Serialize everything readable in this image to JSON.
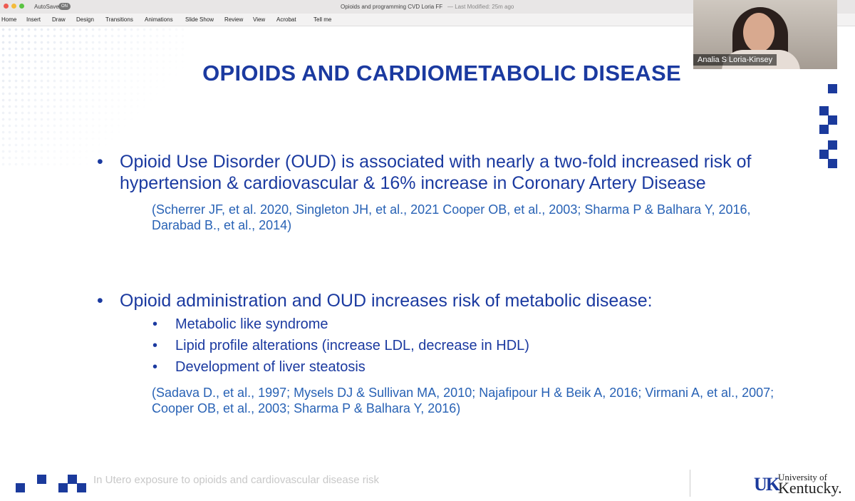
{
  "app_bar": {
    "autosave": "AutoSave",
    "toggle": "ON",
    "document": "Opioids and programming CVD Loria  FF",
    "modified": "— Last Modified: 25m ago"
  },
  "ribbon": [
    "Home",
    "Insert",
    "Draw",
    "Design",
    "Transitions",
    "Animations",
    "Slide Show",
    "Review",
    "View",
    "Acrobat",
    "Tell me"
  ],
  "slide": {
    "title": "OPIOIDS AND CARDIOMETABOLIC DISEASE",
    "bullets": [
      {
        "text": "Opioid Use Disorder (OUD) is associated with nearly a two-fold increased risk of hypertension & cardiovascular & 16% increase in Coronary Artery Disease",
        "sub": [],
        "reference": "(Scherrer JF, et al. 2020, Singleton JH, et al., 2021 Cooper OB, et al., 2003; Sharma P & Balhara Y, 2016, Darabad B., et al., 2014)"
      },
      {
        "text": "Opioid administration and OUD increases risk of metabolic disease:",
        "sub": [
          "Metabolic like syndrome",
          "Lipid profile alterations (increase LDL, decrease in HDL)",
          "Development of liver steatosis"
        ],
        "reference": "(Sadava D., et al., 1997; Mysels DJ & Sullivan MA, 2010; Najafipour H & Beik A, 2016; Virmani A, et al., 2007; Cooper OB, et al., 2003; Sharma P & Balhara Y, 2016)"
      }
    ],
    "footer": "In Utero exposure to opioids and cardiovascular disease risk",
    "logo": {
      "line1": "University of",
      "line2": "Kentucky."
    }
  },
  "video": {
    "name": "Analia S Loria-Kinsey"
  }
}
